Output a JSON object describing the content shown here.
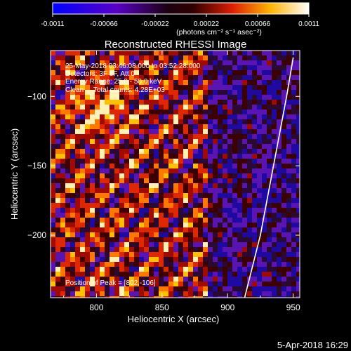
{
  "colorbar": {
    "tick_labels": [
      "-0.0011",
      "-0.00066",
      "-0.00022",
      "0.00022",
      "0.00066",
      "0.0011"
    ],
    "units": "(photons cm⁻² s⁻¹ asec⁻²)"
  },
  "chart_data": {
    "type": "heatmap",
    "title": "Reconstructed RHESSI Image",
    "xlabel": "Heliocentric X (arcsec)",
    "ylabel": "Heliocentric Y (arcsec)",
    "xlim": [
      765,
      955
    ],
    "ylim": [
      -245,
      -67
    ],
    "x_ticks": [
      800,
      850,
      900,
      950
    ],
    "y_ticks": [
      -100,
      -150,
      -200
    ],
    "clim": [
      -0.0011,
      0.0011
    ],
    "colormap": "rhessi-rainbow",
    "info_lines": [
      "25-May-2018 03:46:08.000 to 03:52:28.000",
      "Detectors: 3F 8F, Att 0",
      "Energy Range: 25.0 - 50.0 keV",
      "Clean     Total counts: 4.28E+03"
    ],
    "peak_label": "Position of Peak = [802,-106]",
    "peak": [
      802,
      -106
    ],
    "limb_curve": [
      [
        913,
        -245
      ],
      [
        925,
        -200
      ],
      [
        935,
        -150
      ],
      [
        945,
        -100
      ],
      [
        950,
        -72
      ]
    ]
  },
  "footer": {
    "date": "5-Apr-2018 16:29"
  }
}
